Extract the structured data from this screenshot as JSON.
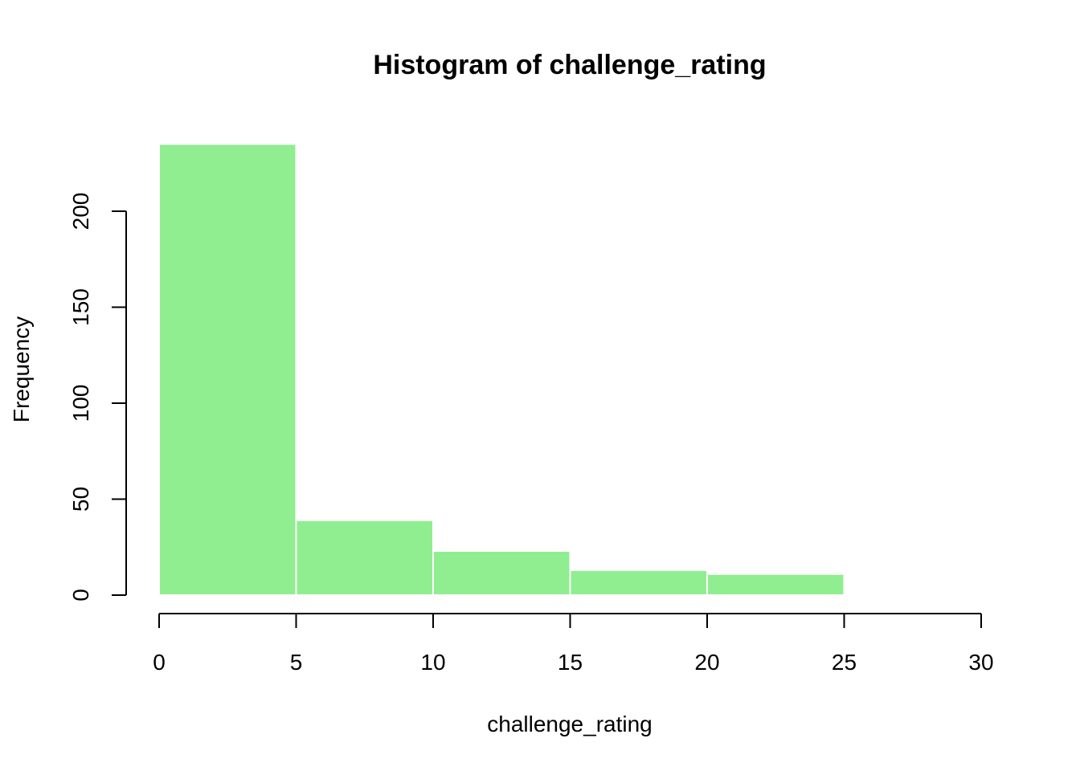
{
  "chart_data": {
    "type": "bar",
    "title": "Histogram of challenge_rating",
    "xlabel": "challenge_rating",
    "ylabel": "Frequency",
    "bins": [
      {
        "from": 0,
        "to": 5,
        "count": 235
      },
      {
        "from": 5,
        "to": 10,
        "count": 39
      },
      {
        "from": 10,
        "to": 15,
        "count": 23
      },
      {
        "from": 15,
        "to": 20,
        "count": 13
      },
      {
        "from": 20,
        "to": 25,
        "count": 11
      }
    ],
    "xlim": [
      0,
      30
    ],
    "ylim": [
      0,
      235
    ],
    "x_ticks": [
      "0",
      "5",
      "10",
      "15",
      "20",
      "25",
      "30"
    ],
    "y_ticks": [
      "0",
      "50",
      "100",
      "150",
      "200"
    ],
    "bar_color": "#90EE90",
    "bar_border_color": "#ffffff",
    "grid": false
  }
}
